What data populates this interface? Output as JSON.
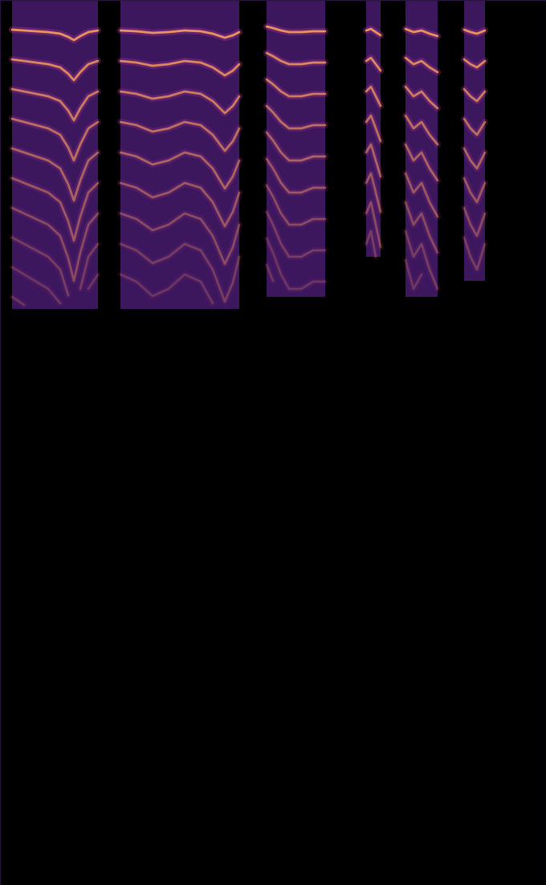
{
  "chart_data": {
    "type": "spectrogram",
    "xlim": [
      0,
      680
    ],
    "ylim": [
      1103,
      0
    ],
    "tick_labels": false,
    "color": "#f7a25a",
    "harmonics": 10,
    "segments": [
      {
        "t": [
          15,
          30,
          45,
          60,
          75,
          85,
          92,
          100,
          110,
          122
        ],
        "f0": [
          37,
          38,
          39,
          40,
          42,
          46,
          50,
          45,
          40,
          38
        ],
        "fmax": 385
      },
      {
        "t": [
          150,
          170,
          190,
          210,
          230,
          250,
          265,
          280,
          290,
          298
        ],
        "f0": [
          38,
          39,
          41,
          40,
          38,
          39,
          42,
          47,
          44,
          40
        ],
        "fmax": 385
      },
      {
        "t": [
          332,
          340,
          350,
          360,
          375,
          390,
          405
        ],
        "f0": [
          33,
          35,
          38,
          40,
          40,
          39,
          39
        ],
        "fmax": 370
      },
      {
        "t": [
          456,
          462,
          468,
          474
        ],
        "f0": [
          38,
          36,
          40,
          44
        ],
        "fmax": 320
      },
      {
        "t": [
          505,
          515,
          525,
          535,
          545
        ],
        "f0": [
          36,
          40,
          38,
          42,
          45
        ],
        "fmax": 370
      },
      {
        "t": [
          578,
          586,
          594,
          604
        ],
        "f0": [
          37,
          40,
          42,
          38
        ],
        "fmax": 350
      }
    ]
  }
}
